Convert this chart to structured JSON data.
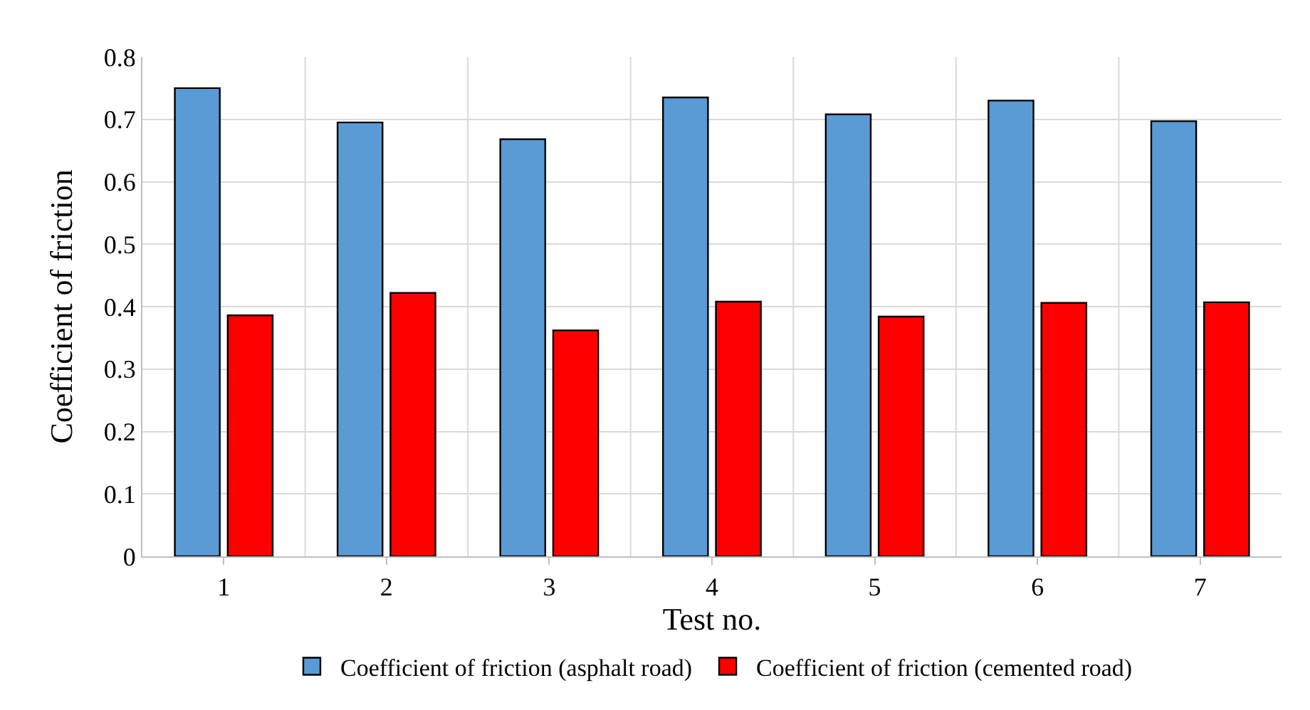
{
  "chart_data": {
    "type": "bar",
    "xlabel": "Test no.",
    "ylabel": "Coefficient of friction",
    "categories": [
      "1",
      "2",
      "3",
      "4",
      "5",
      "6",
      "7"
    ],
    "series": [
      {
        "name": "Coefficient of friction (asphalt road)",
        "color": "#5b9bd5",
        "values": [
          0.75,
          0.695,
          0.668,
          0.735,
          0.708,
          0.73,
          0.697
        ]
      },
      {
        "name": "Coefficient of friction (cemented road)",
        "color": "#ff0000",
        "values": [
          0.386,
          0.422,
          0.362,
          0.408,
          0.384,
          0.406,
          0.407
        ]
      }
    ],
    "ylim": [
      0,
      0.8
    ],
    "yticks": [
      0,
      {
        "value": 0.1,
        "label": "0.1"
      },
      {
        "value": 0.2,
        "label": "0.2"
      },
      {
        "value": 0.3,
        "label": "0.3"
      },
      {
        "value": 0.4,
        "label": "0.4"
      },
      {
        "value": 0.5,
        "label": "0.5"
      },
      {
        "value": 0.6,
        "label": "0.6"
      },
      {
        "value": 0.7,
        "label": "0.7"
      },
      {
        "value": 0.8,
        "label": "0.8"
      }
    ],
    "grid": true,
    "legend": "bottom"
  }
}
